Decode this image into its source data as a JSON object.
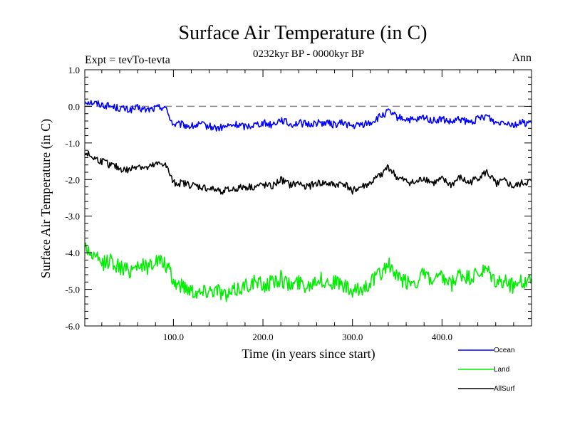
{
  "chart_data": {
    "type": "line",
    "title": "Surface Air Temperature (in C)",
    "subtitle": "0232kyr BP - 0000kyr BP",
    "annotation_left": "Expt = tevTo-tevta",
    "annotation_right": "Ann",
    "xlabel": "Time (in years since start)",
    "ylabel": "Surface Air Temperature (in C)",
    "xlim": [
      1,
      500
    ],
    "ylim": [
      -6.0,
      1.0
    ],
    "x_ticks": [
      100,
      200,
      300,
      400
    ],
    "x_tick_labels": [
      "100.0",
      "200.0",
      "300.0",
      "400.0"
    ],
    "y_ticks": [
      1.0,
      0.0,
      -1.0,
      -2.0,
      -3.0,
      -4.0,
      -5.0,
      -6.0
    ],
    "y_tick_labels": [
      "1.0",
      "0.0",
      "-1.0",
      "-2.0",
      "-3.0",
      "-4.0",
      "-5.0",
      "-6.0"
    ],
    "reference_line": {
      "y": 0.0,
      "style": "dashed",
      "color": "#888888"
    },
    "legend_position": "bottom-right",
    "series": [
      {
        "name": "Ocean",
        "color": "#0000ff",
        "x": [
          1,
          10,
          20,
          30,
          40,
          50,
          60,
          70,
          80,
          90,
          95,
          100,
          110,
          120,
          130,
          140,
          150,
          160,
          170,
          180,
          190,
          200,
          210,
          220,
          230,
          240,
          250,
          260,
          270,
          280,
          290,
          300,
          310,
          320,
          330,
          340,
          350,
          360,
          370,
          380,
          390,
          400,
          410,
          420,
          430,
          440,
          450,
          460,
          470,
          480,
          490,
          500
        ],
        "values": [
          0.15,
          0.1,
          0.05,
          0.0,
          -0.05,
          -0.1,
          -0.05,
          -0.1,
          -0.05,
          0.0,
          -0.25,
          -0.5,
          -0.5,
          -0.55,
          -0.5,
          -0.55,
          -0.6,
          -0.55,
          -0.5,
          -0.55,
          -0.5,
          -0.45,
          -0.5,
          -0.35,
          -0.5,
          -0.45,
          -0.5,
          -0.45,
          -0.45,
          -0.5,
          -0.45,
          -0.55,
          -0.5,
          -0.45,
          -0.3,
          -0.15,
          -0.3,
          -0.35,
          -0.4,
          -0.3,
          -0.4,
          -0.35,
          -0.45,
          -0.35,
          -0.45,
          -0.35,
          -0.25,
          -0.45,
          -0.4,
          -0.5,
          -0.45,
          -0.45
        ]
      },
      {
        "name": "Land",
        "color": "#00ee00",
        "x": [
          1,
          10,
          20,
          30,
          40,
          50,
          60,
          70,
          80,
          90,
          95,
          100,
          110,
          120,
          130,
          140,
          150,
          160,
          170,
          180,
          190,
          200,
          210,
          220,
          230,
          240,
          250,
          260,
          270,
          280,
          290,
          300,
          310,
          320,
          330,
          340,
          350,
          360,
          370,
          380,
          390,
          400,
          410,
          420,
          430,
          440,
          450,
          460,
          470,
          480,
          490,
          500
        ],
        "values": [
          -3.8,
          -4.1,
          -4.3,
          -4.2,
          -4.4,
          -4.5,
          -4.3,
          -4.4,
          -4.2,
          -4.3,
          -4.5,
          -4.8,
          -4.9,
          -5.0,
          -5.1,
          -5.0,
          -5.0,
          -5.2,
          -5.0,
          -4.9,
          -4.8,
          -4.9,
          -4.8,
          -4.7,
          -4.9,
          -4.8,
          -4.9,
          -4.7,
          -4.8,
          -4.8,
          -4.9,
          -5.1,
          -5.0,
          -4.8,
          -4.6,
          -4.3,
          -4.7,
          -4.8,
          -4.8,
          -4.6,
          -4.8,
          -4.7,
          -4.9,
          -4.6,
          -4.7,
          -4.6,
          -4.5,
          -4.8,
          -4.8,
          -4.9,
          -4.8,
          -4.7
        ]
      },
      {
        "name": "AllSurf",
        "color": "#000000",
        "x": [
          1,
          10,
          20,
          30,
          40,
          50,
          60,
          70,
          80,
          90,
          95,
          100,
          110,
          120,
          130,
          140,
          150,
          160,
          170,
          180,
          190,
          200,
          210,
          220,
          230,
          240,
          250,
          260,
          270,
          280,
          290,
          300,
          310,
          320,
          330,
          340,
          350,
          360,
          370,
          380,
          390,
          400,
          410,
          420,
          430,
          440,
          450,
          460,
          470,
          480,
          490,
          500
        ],
        "values": [
          -1.25,
          -1.4,
          -1.5,
          -1.6,
          -1.7,
          -1.75,
          -1.6,
          -1.7,
          -1.6,
          -1.55,
          -1.8,
          -2.1,
          -2.1,
          -2.15,
          -2.2,
          -2.25,
          -2.3,
          -2.3,
          -2.25,
          -2.2,
          -2.2,
          -2.15,
          -2.2,
          -2.0,
          -2.15,
          -2.1,
          -2.2,
          -2.1,
          -2.1,
          -2.15,
          -2.1,
          -2.3,
          -2.2,
          -2.1,
          -1.9,
          -1.65,
          -1.95,
          -2.05,
          -2.1,
          -1.95,
          -2.1,
          -2.0,
          -2.15,
          -1.95,
          -2.1,
          -1.95,
          -1.8,
          -2.1,
          -2.05,
          -2.2,
          -2.1,
          -2.05
        ]
      }
    ]
  }
}
